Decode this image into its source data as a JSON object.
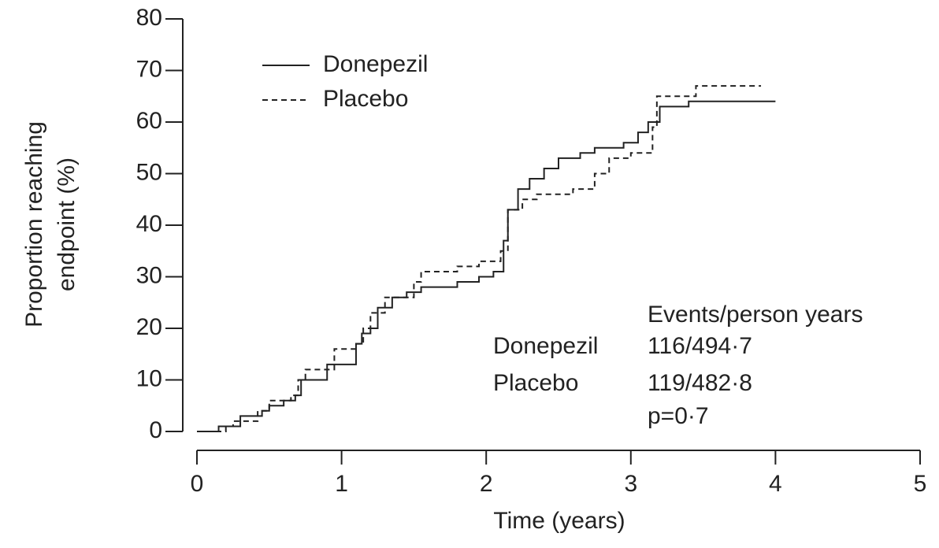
{
  "chart_data": {
    "type": "line",
    "y_label": [
      "Proportion reaching",
      "endpoint (%)"
    ],
    "x_label": "Time (years)",
    "xlim": [
      0,
      5
    ],
    "xticks": [
      0,
      1,
      2,
      3,
      4,
      5
    ],
    "ylim": [
      0,
      80
    ],
    "yticks": [
      0,
      10,
      20,
      30,
      40,
      50,
      60,
      70,
      80
    ],
    "grid": false,
    "legend": "top-left",
    "series": [
      {
        "name": "Donepezil",
        "color": "#222222",
        "dash": "solid",
        "x": [
          0,
          0.15,
          0.15,
          0.3,
          0.3,
          0.45,
          0.45,
          0.5,
          0.5,
          0.6,
          0.6,
          0.68,
          0.68,
          0.72,
          0.72,
          0.9,
          0.9,
          1.1,
          1.1,
          1.14,
          1.14,
          1.2,
          1.2,
          1.25,
          1.25,
          1.35,
          1.35,
          1.45,
          1.45,
          1.55,
          1.55,
          1.8,
          1.8,
          1.95,
          1.95,
          2.05,
          2.05,
          2.12,
          2.12,
          2.15,
          2.15,
          2.22,
          2.22,
          2.3,
          2.3,
          2.4,
          2.4,
          2.5,
          2.5,
          2.65,
          2.65,
          2.75,
          2.75,
          2.95,
          2.95,
          3.05,
          3.05,
          3.12,
          3.12,
          3.2,
          3.2,
          3.4,
          3.4,
          4.0
        ],
        "values": [
          0,
          0,
          1,
          1,
          3,
          3,
          4,
          4,
          5,
          5,
          6,
          6,
          7,
          7,
          10,
          10,
          13,
          13,
          17,
          17,
          19,
          19,
          20,
          20,
          24,
          24,
          26,
          26,
          27,
          27,
          28,
          28,
          29,
          29,
          30,
          30,
          31,
          31,
          37,
          37,
          43,
          43,
          47,
          47,
          49,
          49,
          51,
          51,
          53,
          53,
          54,
          54,
          55,
          55,
          56,
          56,
          58,
          58,
          60,
          60,
          63,
          63,
          64,
          64
        ]
      },
      {
        "name": "Placebo",
        "color": "#222222",
        "dash": "dashed",
        "x": [
          0,
          0.2,
          0.2,
          0.25,
          0.25,
          0.42,
          0.42,
          0.5,
          0.5,
          0.65,
          0.65,
          0.7,
          0.7,
          0.75,
          0.75,
          0.95,
          0.95,
          1.1,
          1.1,
          1.15,
          1.15,
          1.2,
          1.2,
          1.3,
          1.3,
          1.5,
          1.5,
          1.55,
          1.55,
          1.8,
          1.8,
          1.95,
          1.95,
          2.1,
          2.1,
          2.15,
          2.15,
          2.25,
          2.25,
          2.35,
          2.35,
          2.6,
          2.6,
          2.75,
          2.75,
          2.85,
          2.85,
          3.0,
          3.0,
          3.15,
          3.15,
          3.18,
          3.18,
          3.45,
          3.45,
          3.9
        ],
        "values": [
          0,
          0,
          1,
          1,
          2,
          2,
          4,
          4,
          6,
          6,
          7,
          7,
          10,
          10,
          12,
          12,
          16,
          16,
          17,
          17,
          20,
          20,
          23,
          23,
          26,
          26,
          29,
          29,
          31,
          31,
          32,
          32,
          33,
          33,
          35,
          35,
          43,
          43,
          45,
          45,
          46,
          46,
          47,
          47,
          50,
          50,
          53,
          53,
          54,
          54,
          59,
          59,
          65,
          65,
          67,
          67
        ]
      }
    ],
    "annotation": {
      "header": "Events/person years",
      "rows": [
        [
          "Donepezil",
          "116/494·7"
        ],
        [
          "Placebo",
          "119/482·8"
        ]
      ],
      "p_value": "p=0·7"
    }
  }
}
